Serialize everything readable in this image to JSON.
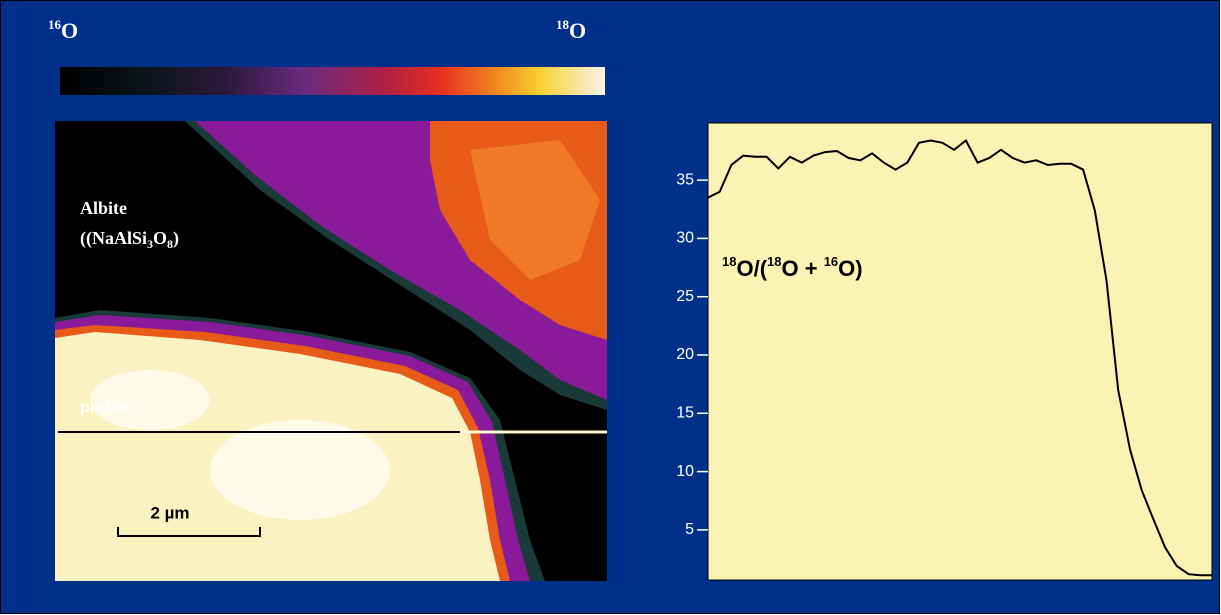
{
  "colorbar": {
    "left": {
      "sup": "16",
      "text": "O"
    },
    "right": {
      "sup": "18",
      "text": "O"
    }
  },
  "image": {
    "mineral": {
      "name": "Albite",
      "formula": [
        "((NaAlSi",
        "3",
        "O",
        "8",
        ")"
      ]
    },
    "profile": "profile",
    "scale_bar": "2 µm"
  },
  "chart_data": {
    "type": "line",
    "y_label": [
      "18",
      "O/(",
      "18",
      "O + ",
      "16",
      "O)"
    ],
    "values": [
      33.5,
      34,
      36.3,
      37.1,
      37,
      37,
      36,
      37,
      36.5,
      37.1,
      37.4,
      37.5,
      36.9,
      36.7,
      37.3,
      36.5,
      35.9,
      36.5,
      38.2,
      38.4,
      38.2,
      37.6,
      38.4,
      36.5,
      36.9,
      37.6,
      36.9,
      36.5,
      36.7,
      36.3,
      36.4,
      36.4,
      35.9,
      32.4,
      26.4,
      17,
      11.9,
      8.4,
      5.9,
      3.5,
      1.9,
      1.2,
      1.1,
      1.1
    ],
    "color": "#000000",
    "ylim": [
      0.7,
      39.9
    ],
    "yticks": [
      5,
      10,
      15,
      20,
      25,
      30,
      35
    ]
  }
}
